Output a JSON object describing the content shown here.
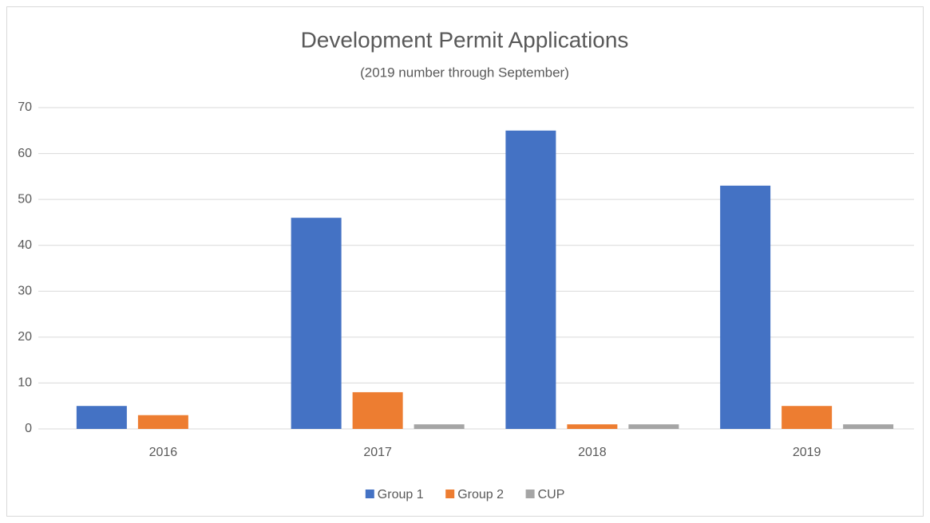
{
  "chart_data": {
    "type": "bar",
    "title": "Development Permit Applications",
    "subtitle": "(2019 number through September)",
    "categories": [
      "2016",
      "2017",
      "2018",
      "2019"
    ],
    "series": [
      {
        "name": "Group 1",
        "color": "#4472c4",
        "values": [
          5,
          46,
          65,
          53
        ]
      },
      {
        "name": "Group 2",
        "color": "#ed7d31",
        "values": [
          3,
          8,
          1,
          5
        ]
      },
      {
        "name": "CUP",
        "color": "#a5a5a5",
        "values": [
          0,
          1,
          1,
          1
        ]
      }
    ],
    "ylim": [
      0,
      70
    ],
    "yticks": [
      0,
      10,
      20,
      30,
      40,
      50,
      60,
      70
    ],
    "grid": true,
    "legend": "bottom"
  }
}
